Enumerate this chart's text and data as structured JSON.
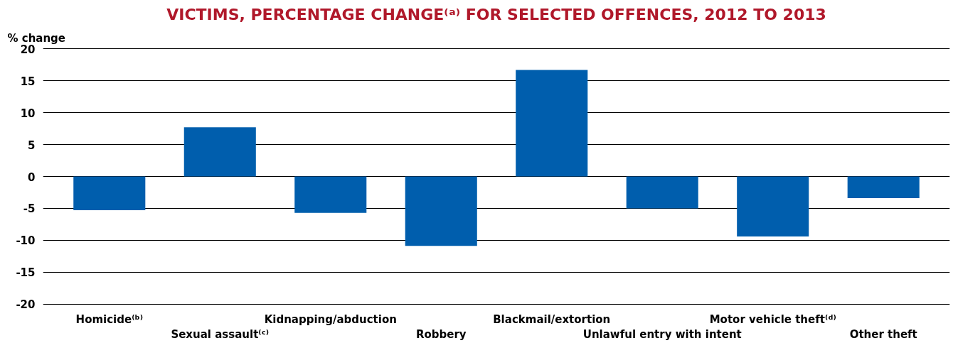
{
  "chart_data": {
    "type": "bar",
    "title": "VICTIMS, PERCENTAGE CHANGE⁽ᵃ⁾ FOR SELECTED OFFENCES, 2012 TO 2013",
    "ylabel": "% change",
    "categories": [
      "Homicide⁽ᵇ⁾",
      "Sexual assault⁽ᶜ⁾",
      "Kidnapping/abduction",
      "Robbery",
      "Blackmail/extortion",
      "Unlawful entry with intent",
      "Motor vehicle theft⁽ᵈ⁾",
      "Other theft"
    ],
    "values": [
      -5.3,
      7.7,
      -5.7,
      -10.9,
      16.7,
      -5.0,
      -9.4,
      -3.4
    ],
    "color": "#005ead",
    "ylim": [
      -20,
      20
    ],
    "yticks": [
      -20,
      -15,
      -10,
      -5,
      0,
      5,
      10,
      15,
      20
    ],
    "grid": "y"
  }
}
